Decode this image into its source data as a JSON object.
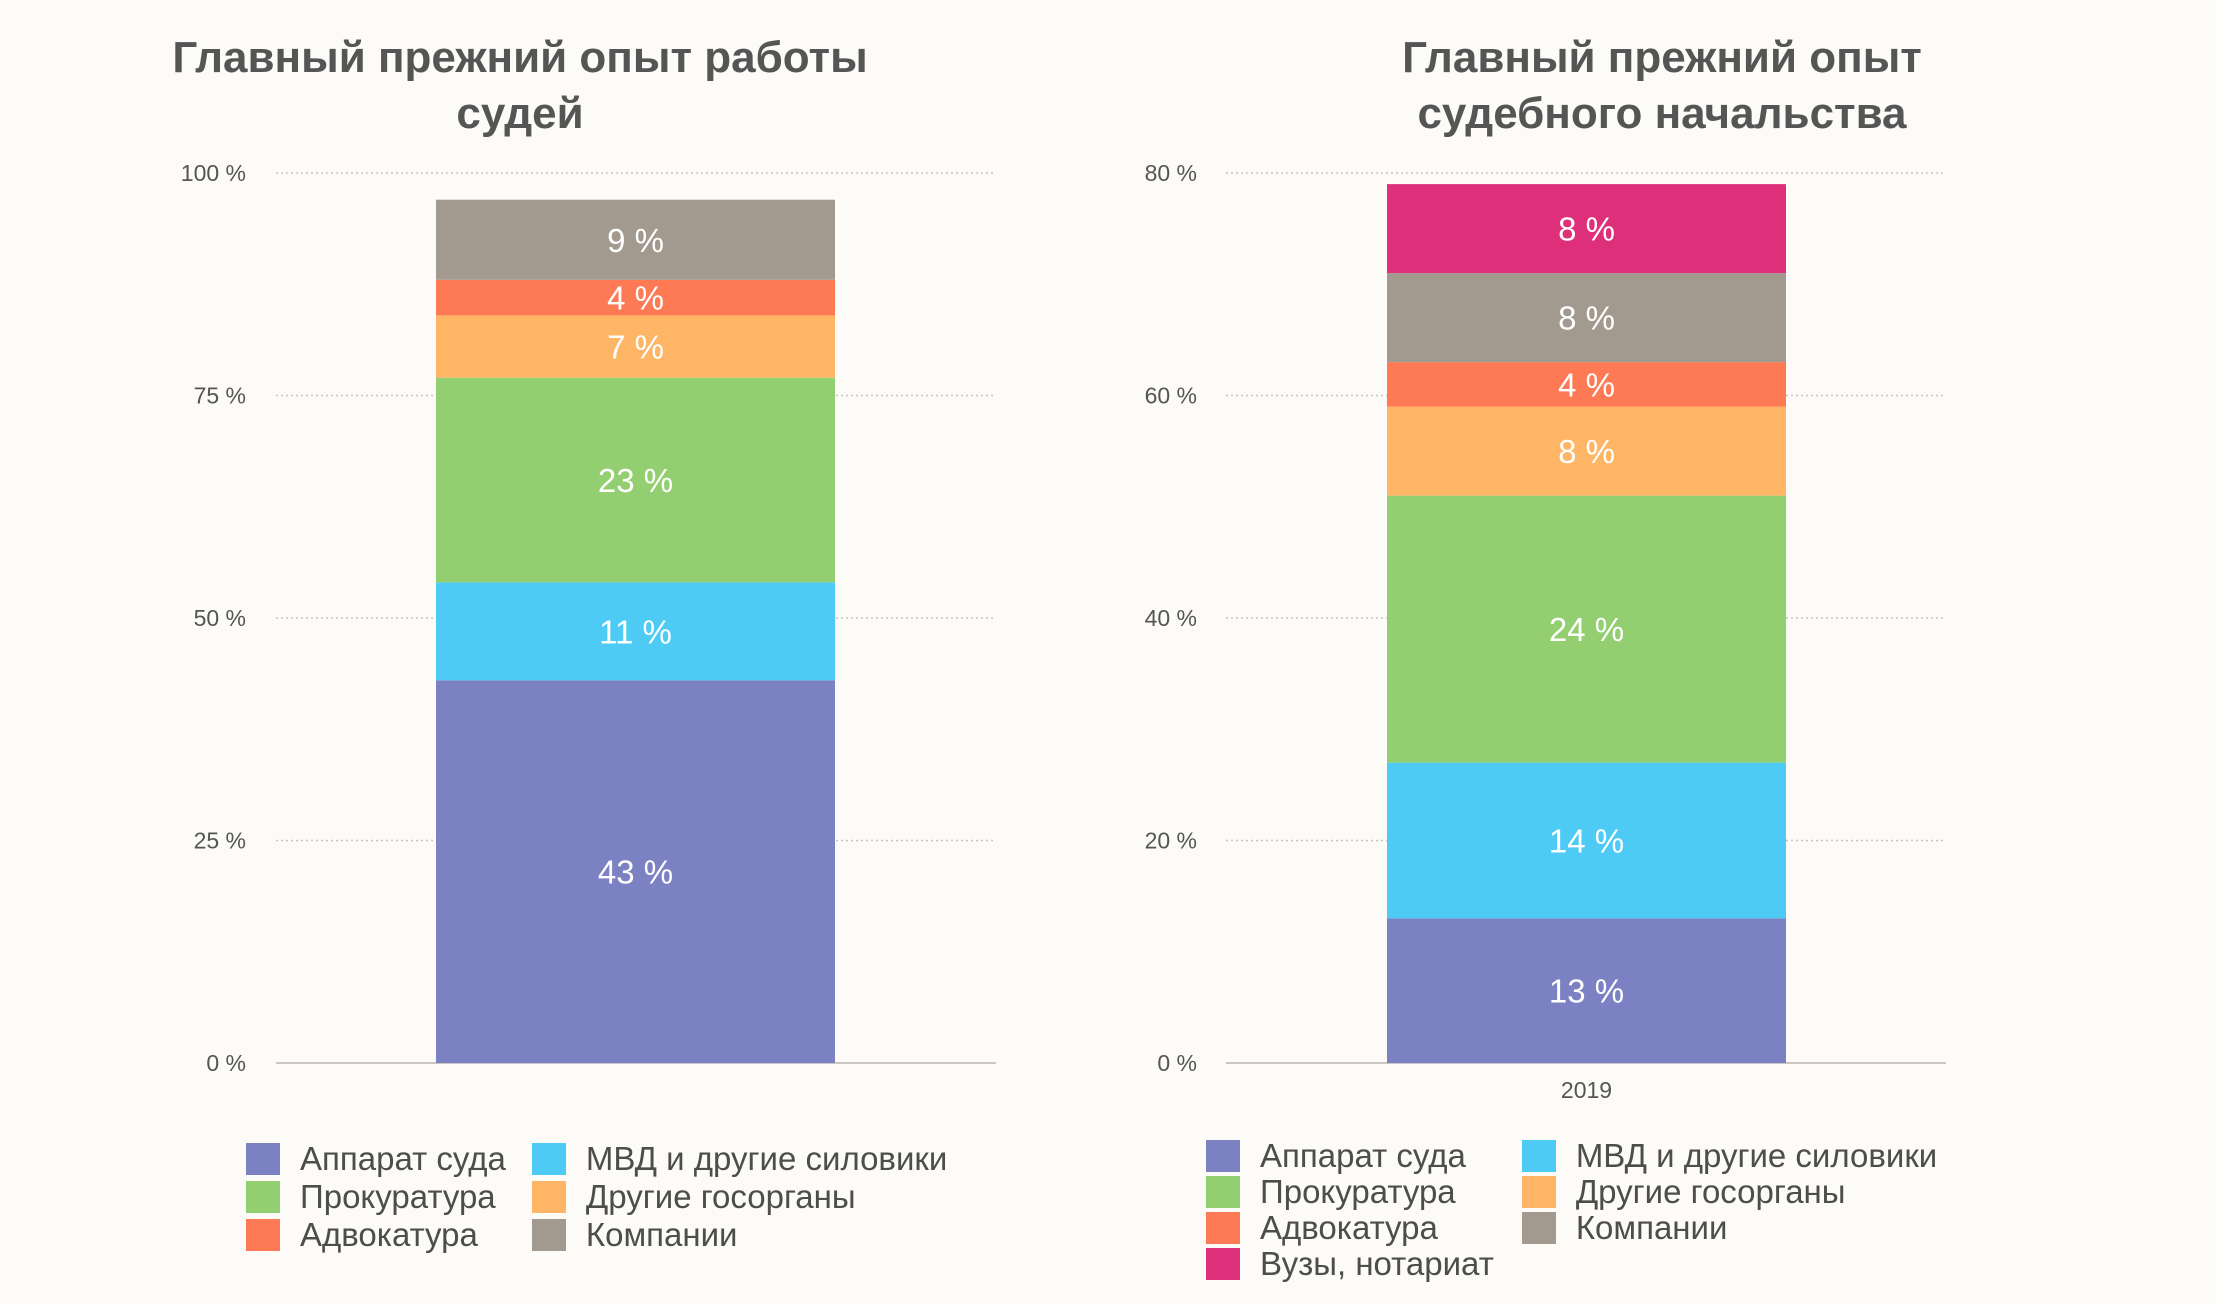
{
  "colors": {
    "apparat": "#7b81c2",
    "mvd": "#4ecbf4",
    "prokuratura": "#93cf71",
    "gosorgany": "#ffb566",
    "advokatura": "#fe7a55",
    "kompanii": "#a39a8f",
    "vuzy": "#dd2f7a"
  },
  "chart_data": [
    {
      "type": "bar",
      "stacked": true,
      "title": "Главный прежний опыт работы судей",
      "title_lines": [
        "Главный прежний опыт работы",
        "судей"
      ],
      "ylim": [
        0,
        100
      ],
      "yticks": [
        0,
        25,
        50,
        75,
        100
      ],
      "ytick_labels": [
        "0 %",
        "25 %",
        "50 %",
        "75 %",
        "100 %"
      ],
      "grid": true,
      "categories": [
        ""
      ],
      "series": [
        {
          "name": "Аппарат суда",
          "values": [
            43
          ],
          "label": "43 %",
          "color": "#7b81c2"
        },
        {
          "name": "МВД и другие силовики",
          "values": [
            11
          ],
          "label": "11 %",
          "color": "#4ecbf4"
        },
        {
          "name": "Прокуратура",
          "values": [
            23
          ],
          "label": "23 %",
          "color": "#93cf71"
        },
        {
          "name": "Другие госорганы",
          "values": [
            7
          ],
          "label": "7 %",
          "color": "#ffb566"
        },
        {
          "name": "Адвокатура",
          "values": [
            4
          ],
          "label": "4 %",
          "color": "#fe7a55"
        },
        {
          "name": "Компании",
          "values": [
            9
          ],
          "label": "9 %",
          "color": "#a39a8f"
        }
      ],
      "legend": [
        {
          "name": "Аппарат суда",
          "color": "#7b81c2"
        },
        {
          "name": "МВД и другие силовики",
          "color": "#4ecbf4"
        },
        {
          "name": "Прокуратура",
          "color": "#93cf71"
        },
        {
          "name": "Другие госорганы",
          "color": "#ffb566"
        },
        {
          "name": "Адвокатура",
          "color": "#fe7a55"
        },
        {
          "name": "Компании",
          "color": "#a39a8f"
        }
      ]
    },
    {
      "type": "bar",
      "stacked": true,
      "title": "Главный прежний опыт судебного начальства",
      "title_lines": [
        "Главный прежний опыт",
        "судебного начальства"
      ],
      "ylim": [
        0,
        80
      ],
      "yticks": [
        0,
        20,
        40,
        60,
        80
      ],
      "ytick_labels": [
        "0 %",
        "20 %",
        "40 %",
        "60 %",
        "80 %"
      ],
      "grid": true,
      "categories": [
        "2019"
      ],
      "series": [
        {
          "name": "Аппарат суда",
          "values": [
            13
          ],
          "label": "13 %",
          "color": "#7b81c2"
        },
        {
          "name": "МВД и другие силовики",
          "values": [
            14
          ],
          "label": "14 %",
          "color": "#4ecbf4"
        },
        {
          "name": "Прокуратура",
          "values": [
            24
          ],
          "label": "24 %",
          "color": "#93cf71"
        },
        {
          "name": "Другие госорганы",
          "values": [
            8
          ],
          "label": "8 %",
          "color": "#ffb566"
        },
        {
          "name": "Адвокатура",
          "values": [
            4
          ],
          "label": "4 %",
          "color": "#fe7a55"
        },
        {
          "name": "Компании",
          "values": [
            8
          ],
          "label": "8 %",
          "color": "#a39a8f"
        },
        {
          "name": "Вузы, нотариат",
          "values": [
            8
          ],
          "label": "8 %",
          "color": "#dd2f7a"
        }
      ],
      "legend": [
        {
          "name": "Аппарат суда",
          "color": "#7b81c2"
        },
        {
          "name": "МВД и другие силовики",
          "color": "#4ecbf4"
        },
        {
          "name": "Прокуратура",
          "color": "#93cf71"
        },
        {
          "name": "Другие госорганы",
          "color": "#ffb566"
        },
        {
          "name": "Адвокатура",
          "color": "#fe7a55"
        },
        {
          "name": "Компании",
          "color": "#a39a8f"
        },
        {
          "name": "Вузы, нотариат",
          "color": "#dd2f7a"
        }
      ]
    }
  ]
}
